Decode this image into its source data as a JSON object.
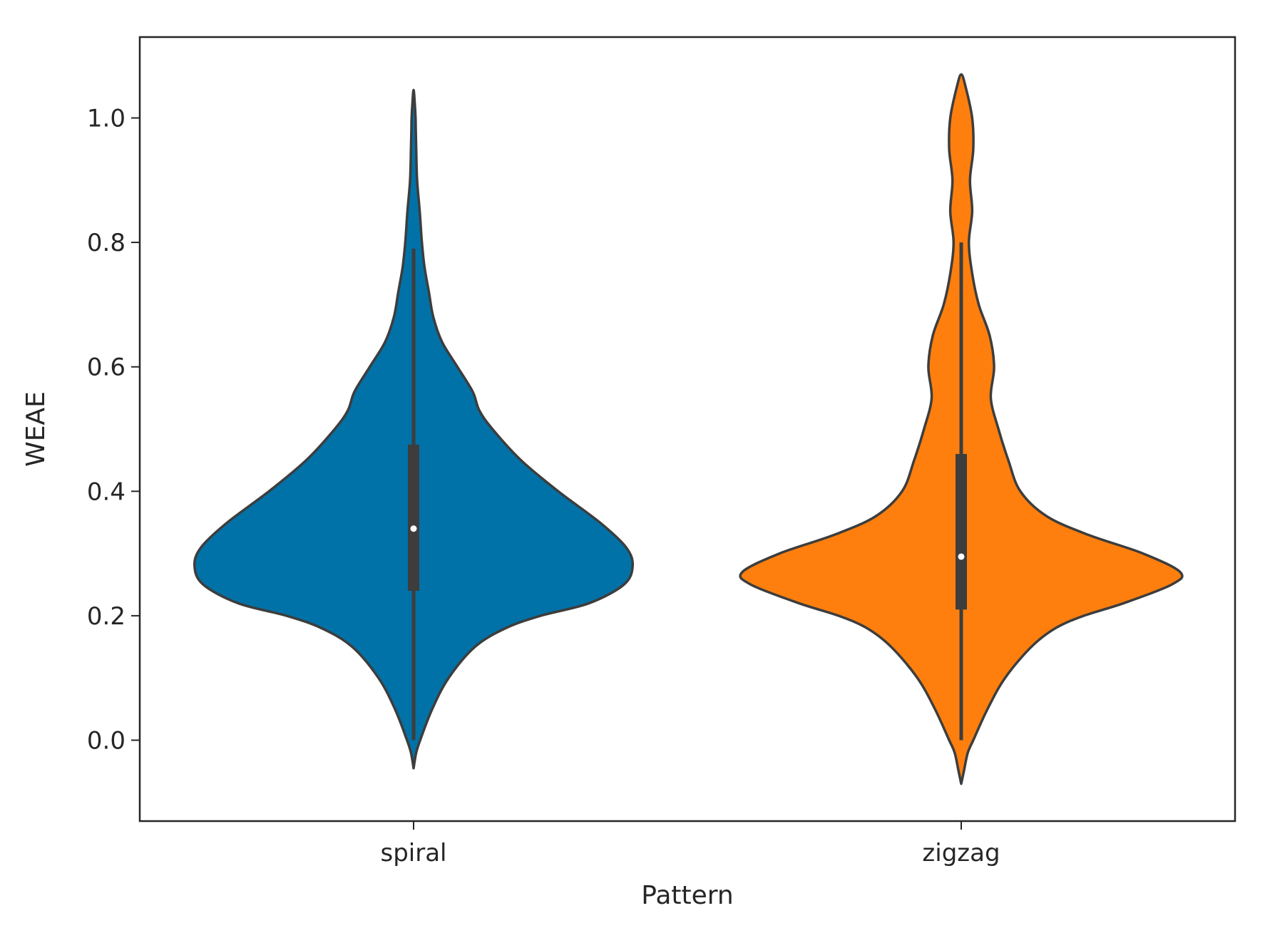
{
  "chart_data": {
    "type": "violin",
    "title": "",
    "xlabel": "Pattern",
    "ylabel": "WEAE",
    "ylim": [
      -0.13,
      1.13
    ],
    "yticks": [
      0.0,
      0.2,
      0.4,
      0.6,
      0.8,
      1.0
    ],
    "ytick_labels": [
      "0.0",
      "0.2",
      "0.4",
      "0.6",
      "0.8",
      "1.0"
    ],
    "grid": false,
    "categories": [
      "spiral",
      "zigzag"
    ],
    "series": [
      {
        "category": "spiral",
        "color": "#0072a8",
        "median": 0.34,
        "q1": 0.24,
        "q3": 0.475,
        "whisker_low": 0.0,
        "whisker_high": 0.79,
        "density_y": [
          -0.045,
          -0.02,
          0.0,
          0.05,
          0.1,
          0.15,
          0.18,
          0.2,
          0.22,
          0.25,
          0.28,
          0.31,
          0.35,
          0.4,
          0.45,
          0.5,
          0.53,
          0.56,
          0.6,
          0.64,
          0.68,
          0.72,
          0.76,
          0.8,
          0.85,
          0.9,
          0.95,
          0.98,
          1.0,
          1.02,
          1.045
        ],
        "density_width": [
          0.0,
          0.012,
          0.03,
          0.085,
          0.16,
          0.28,
          0.42,
          0.58,
          0.8,
          0.96,
          1.0,
          0.97,
          0.85,
          0.66,
          0.49,
          0.36,
          0.3,
          0.27,
          0.2,
          0.13,
          0.09,
          0.07,
          0.05,
          0.038,
          0.028,
          0.016,
          0.012,
          0.01,
          0.009,
          0.006,
          0.0
        ]
      },
      {
        "category": "zigzag",
        "color": "#ff7f0e",
        "median": 0.295,
        "q1": 0.21,
        "q3": 0.46,
        "whisker_low": 0.0,
        "whisker_high": 0.8,
        "density_y": [
          -0.07,
          -0.05,
          -0.02,
          0.0,
          0.05,
          0.1,
          0.15,
          0.18,
          0.2,
          0.22,
          0.25,
          0.27,
          0.3,
          0.33,
          0.36,
          0.4,
          0.45,
          0.5,
          0.55,
          0.6,
          0.65,
          0.7,
          0.75,
          0.8,
          0.85,
          0.9,
          0.95,
          1.0,
          1.05,
          1.07
        ],
        "density_width": [
          0.0,
          0.012,
          0.03,
          0.055,
          0.12,
          0.2,
          0.32,
          0.43,
          0.56,
          0.74,
          0.96,
          1.0,
          0.83,
          0.58,
          0.39,
          0.27,
          0.215,
          0.17,
          0.135,
          0.15,
          0.13,
          0.08,
          0.05,
          0.035,
          0.05,
          0.04,
          0.055,
          0.05,
          0.02,
          0.0
        ]
      }
    ]
  }
}
